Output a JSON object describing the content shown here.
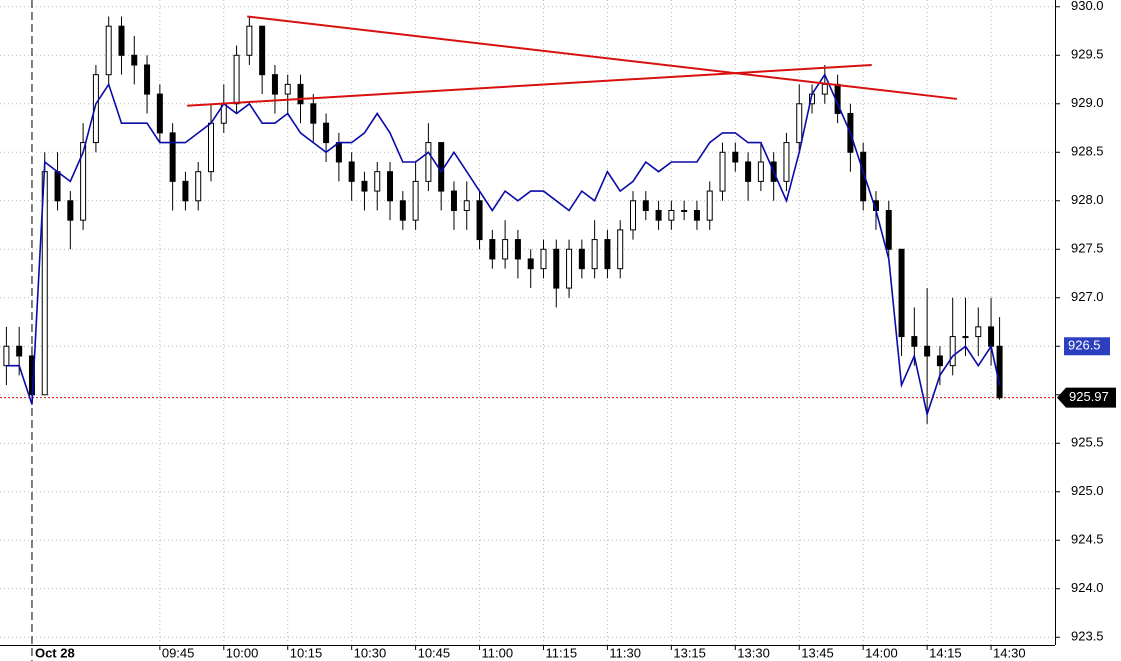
{
  "chart_data": {
    "type": "candlestick",
    "x": [
      -6,
      -3,
      0,
      3,
      6,
      9,
      12,
      15,
      18,
      21,
      24,
      27,
      30,
      33,
      36,
      39,
      42,
      45,
      48,
      51,
      54,
      57,
      60,
      63,
      66,
      69,
      72,
      75,
      78,
      81,
      84,
      87,
      90,
      93,
      96,
      99,
      102,
      105,
      108,
      111,
      114,
      117,
      120,
      123,
      126,
      129,
      132,
      135,
      138,
      141,
      144,
      147,
      150,
      153,
      156,
      159,
      162,
      165,
      168,
      171,
      174,
      177,
      180,
      183,
      186,
      189,
      192,
      195,
      198,
      201,
      204,
      207,
      210,
      213,
      216,
      219,
      222,
      225,
      227
    ],
    "open": [
      926.3,
      926.5,
      926.4,
      926.0,
      928.3,
      928.0,
      927.8,
      928.6,
      929.3,
      929.8,
      929.5,
      929.4,
      929.1,
      928.7,
      928.2,
      928.0,
      928.3,
      928.8,
      929.0,
      929.5,
      929.8,
      929.3,
      929.1,
      929.2,
      929.0,
      928.8,
      928.6,
      928.4,
      928.2,
      928.1,
      928.3,
      928.0,
      927.8,
      928.2,
      928.6,
      928.1,
      927.9,
      928.0,
      927.6,
      927.4,
      927.6,
      927.4,
      927.3,
      927.5,
      927.1,
      927.5,
      927.3,
      927.6,
      927.3,
      927.7,
      928.0,
      927.9,
      927.8,
      927.9,
      927.9,
      927.8,
      928.1,
      928.5,
      928.4,
      928.2,
      928.4,
      928.2,
      928.6,
      929.0,
      929.1,
      929.2,
      928.9,
      928.5,
      928.0,
      927.9,
      927.5,
      926.6,
      926.5,
      926.4,
      926.3,
      926.6,
      926.6,
      926.7,
      926.5
    ],
    "high": [
      926.7,
      926.7,
      926.5,
      928.5,
      928.5,
      928.1,
      928.8,
      929.4,
      929.9,
      929.9,
      929.7,
      929.5,
      929.2,
      928.8,
      928.3,
      928.4,
      929.0,
      929.2,
      929.6,
      929.9,
      929.8,
      929.4,
      929.3,
      929.3,
      929.1,
      928.9,
      928.7,
      928.5,
      928.3,
      928.4,
      928.4,
      928.1,
      928.4,
      928.8,
      928.6,
      928.2,
      928.2,
      928.1,
      927.7,
      927.8,
      927.7,
      927.5,
      927.6,
      927.6,
      927.6,
      927.6,
      927.8,
      927.7,
      927.8,
      928.1,
      928.1,
      928.0,
      928.0,
      928.0,
      928.0,
      928.2,
      928.6,
      928.6,
      928.5,
      928.6,
      928.5,
      928.7,
      929.2,
      929.2,
      929.4,
      929.3,
      929.0,
      928.6,
      928.1,
      928.0,
      927.5,
      926.9,
      927.1,
      926.5,
      927.0,
      927.0,
      926.9,
      927.0,
      926.8
    ],
    "low": [
      926.1,
      926.2,
      925.9,
      926.0,
      927.9,
      927.5,
      927.7,
      928.5,
      929.2,
      929.3,
      929.2,
      928.9,
      928.6,
      927.9,
      927.9,
      927.9,
      928.2,
      928.7,
      928.9,
      929.4,
      929.1,
      928.9,
      928.9,
      928.8,
      928.6,
      928.4,
      928.2,
      928.0,
      927.9,
      927.9,
      927.8,
      927.7,
      927.7,
      928.1,
      927.9,
      927.7,
      927.7,
      927.5,
      927.3,
      927.3,
      927.2,
      927.1,
      927.2,
      926.9,
      927.0,
      927.2,
      927.2,
      927.2,
      927.2,
      927.6,
      927.8,
      927.7,
      927.7,
      927.8,
      927.7,
      927.7,
      928.0,
      928.3,
      928.0,
      928.1,
      928.0,
      928.1,
      928.5,
      928.9,
      929.0,
      928.8,
      928.3,
      927.9,
      927.7,
      927.4,
      926.4,
      926.3,
      925.7,
      926.1,
      926.2,
      926.4,
      926.4,
      926.3,
      925.95
    ],
    "close": [
      926.5,
      926.4,
      926.0,
      928.3,
      928.0,
      927.8,
      928.6,
      929.3,
      929.8,
      929.5,
      929.4,
      929.1,
      928.7,
      928.2,
      928.0,
      928.3,
      928.8,
      929.0,
      929.5,
      929.8,
      929.3,
      929.1,
      929.2,
      929.0,
      928.8,
      928.6,
      928.4,
      928.2,
      928.1,
      928.3,
      928.0,
      927.8,
      928.2,
      928.6,
      928.1,
      927.9,
      928.0,
      927.6,
      927.4,
      927.6,
      927.4,
      927.3,
      927.5,
      927.1,
      927.5,
      927.3,
      927.6,
      927.3,
      927.7,
      928.0,
      927.9,
      927.8,
      927.9,
      927.9,
      927.8,
      928.1,
      928.5,
      928.4,
      928.2,
      928.4,
      928.2,
      928.6,
      929.0,
      929.1,
      929.2,
      928.9,
      928.5,
      928.0,
      927.9,
      927.5,
      926.6,
      926.5,
      926.4,
      926.3,
      926.6,
      926.6,
      926.7,
      926.5,
      925.97
    ],
    "up_color": "#ffffff",
    "down_color": "#000000",
    "series": [
      {
        "color": "#0a0aa8",
        "values": [
          926.3,
          926.3,
          925.9,
          928.4,
          928.3,
          928.2,
          928.5,
          929.0,
          929.2,
          928.8,
          928.8,
          928.8,
          928.6,
          928.6,
          928.6,
          928.7,
          928.8,
          929.0,
          928.9,
          929.0,
          928.8,
          928.8,
          928.9,
          928.7,
          928.6,
          928.5,
          928.6,
          928.6,
          928.7,
          928.9,
          928.7,
          928.4,
          928.4,
          928.5,
          928.3,
          928.5,
          928.3,
          928.1,
          927.9,
          928.1,
          928.0,
          928.1,
          928.1,
          928.0,
          927.9,
          928.1,
          928.0,
          928.3,
          928.1,
          928.2,
          928.4,
          928.3,
          928.4,
          928.4,
          928.4,
          928.6,
          928.7,
          928.7,
          928.6,
          928.6,
          928.3,
          928.0,
          928.5,
          929.1,
          929.3,
          929.0,
          928.7,
          928.3,
          927.9,
          927.4,
          926.1,
          926.4,
          925.8,
          926.2,
          926.4,
          926.5,
          926.3,
          926.5,
          926.1
        ]
      }
    ],
    "trendlines": [
      {
        "x": [
          50.5,
          217
        ],
        "y": [
          929.9,
          929.05
        ]
      },
      {
        "x": [
          36.4,
          197
        ],
        "y": [
          928.98,
          929.4
        ]
      }
    ],
    "trendline_color": "#d81010",
    "last_price": 925.97,
    "indicator_last": 926.5,
    "session_start": {
      "value": 0,
      "label": "Oct 28"
    },
    "xlim": [
      -7.5,
      240
    ],
    "xticks": [
      {
        "value": 30,
        "label": "09:45"
      },
      {
        "value": 45,
        "label": "10:00"
      },
      {
        "value": 60,
        "label": "10:15"
      },
      {
        "value": 75,
        "label": "10:30"
      },
      {
        "value": 90,
        "label": "10:45"
      },
      {
        "value": 105,
        "label": "11:00"
      },
      {
        "value": 120,
        "label": "11:15"
      },
      {
        "value": 135,
        "label": "11:30"
      },
      {
        "value": 150,
        "label": "13:15"
      },
      {
        "value": 165,
        "label": "13:30"
      },
      {
        "value": 180,
        "label": "13:45"
      },
      {
        "value": 195,
        "label": "14:00"
      },
      {
        "value": 210,
        "label": "14:15"
      },
      {
        "value": 225,
        "label": "14:30"
      }
    ],
    "ylim": [
      923.42,
      930.07
    ],
    "yticks": [
      {
        "value": 923.5,
        "label": "923.5"
      },
      {
        "value": 924,
        "label": "924.0"
      },
      {
        "value": 924.5,
        "label": "924.5"
      },
      {
        "value": 925,
        "label": "925.0"
      },
      {
        "value": 925.5,
        "label": "925.5"
      },
      {
        "value": 926,
        "label": "926.0"
      },
      {
        "value": 926.5,
        "label": "926.5"
      },
      {
        "value": 927,
        "label": "927.0"
      },
      {
        "value": 927.5,
        "label": "927.5"
      },
      {
        "value": 928,
        "label": "928.0"
      },
      {
        "value": 928.5,
        "label": "928.5"
      },
      {
        "value": 929,
        "label": "929.0"
      },
      {
        "value": 929.5,
        "label": "929.5"
      },
      {
        "value": 930,
        "label": "930.0"
      }
    ],
    "grid": true
  }
}
